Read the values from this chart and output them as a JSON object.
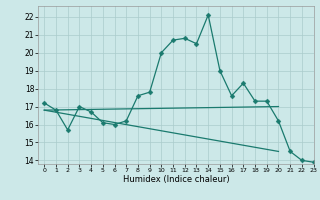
{
  "xlabel": "Humidex (Indice chaleur)",
  "bg_color": "#cce8e8",
  "grid_color": "#aacccc",
  "line_color": "#1a7a6e",
  "xlim": [
    -0.5,
    23
  ],
  "ylim": [
    13.8,
    22.6
  ],
  "yticks": [
    14,
    15,
    16,
    17,
    18,
    19,
    20,
    21,
    22
  ],
  "xticks": [
    0,
    1,
    2,
    3,
    4,
    5,
    6,
    7,
    8,
    9,
    10,
    11,
    12,
    13,
    14,
    15,
    16,
    17,
    18,
    19,
    20,
    21,
    22,
    23
  ],
  "series": [
    {
      "x": [
        0,
        1,
        2,
        3,
        4,
        5,
        6,
        7,
        8,
        9,
        10,
        11,
        12,
        13,
        14,
        15,
        16,
        17,
        18,
        19,
        20,
        21,
        22,
        23
      ],
      "y": [
        17.2,
        16.8,
        15.7,
        17.0,
        16.7,
        16.1,
        16.0,
        16.2,
        17.6,
        17.8,
        20.0,
        20.7,
        20.8,
        20.5,
        22.1,
        19.0,
        17.6,
        18.3,
        17.3,
        17.3,
        16.2,
        14.5,
        14.0,
        13.9
      ],
      "marker": "D",
      "markersize": 2.5,
      "linewidth": 0.9
    },
    {
      "x": [
        0,
        20
      ],
      "y": [
        16.8,
        17.0
      ],
      "marker": null,
      "markersize": 0,
      "linewidth": 0.9
    },
    {
      "x": [
        0,
        20
      ],
      "y": [
        16.8,
        14.5
      ],
      "marker": null,
      "markersize": 0,
      "linewidth": 0.9
    }
  ]
}
